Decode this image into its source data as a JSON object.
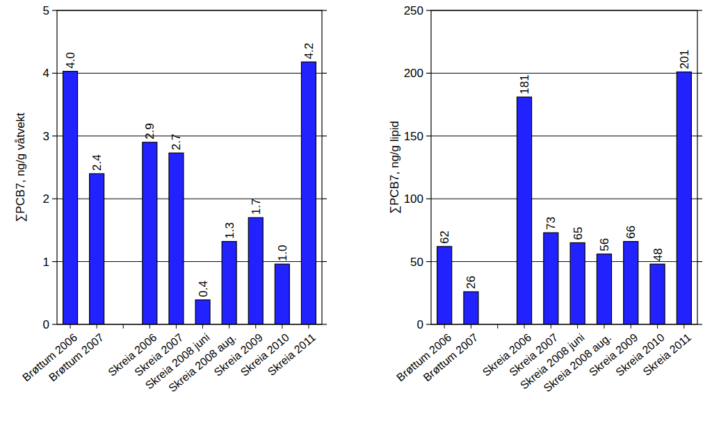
{
  "chart_data": [
    {
      "type": "bar",
      "y_label": "∑PCB7, ng/g våtvekt",
      "categories": [
        "Brøttum 2006",
        "Brøttum 2007",
        null,
        "Skreia 2006",
        "Skreia 2007",
        "Skreia 2008 juni",
        "Skreia 2008 aug.",
        "Skreia 2009",
        "Skreia 2010",
        "Skreia 2011"
      ],
      "values": [
        4.03,
        2.4,
        null,
        2.9,
        2.73,
        0.39,
        1.32,
        1.7,
        0.96,
        4.18
      ],
      "value_labels": [
        "4.0",
        "2.4",
        null,
        "2.9",
        "2.7",
        "0.4",
        "1.3",
        "1.7",
        "1.0",
        "4.2"
      ],
      "color": "#2222ff",
      "ylim": [
        0,
        5
      ],
      "yticks": [
        0,
        1,
        2,
        3,
        4,
        5
      ],
      "grid": true,
      "data_labels": true
    },
    {
      "type": "bar",
      "y_label": "∑PCB7, ng/g lipid",
      "categories": [
        "Brøttum 2006",
        "Brøttum 2007",
        null,
        "Skreia 2006",
        "Skreia 2007",
        "Skreia 2008 juni",
        "Skreia 2008 aug.",
        "Skreia 2009",
        "Skreia 2010",
        "Skreia 2011"
      ],
      "values": [
        62,
        26,
        null,
        181,
        73,
        65,
        56,
        66,
        48,
        201
      ],
      "color": "#2222ff",
      "ylim": [
        0,
        250
      ],
      "yticks": [
        0,
        50,
        100,
        150,
        200,
        250
      ],
      "grid": true,
      "data_labels": true
    }
  ]
}
